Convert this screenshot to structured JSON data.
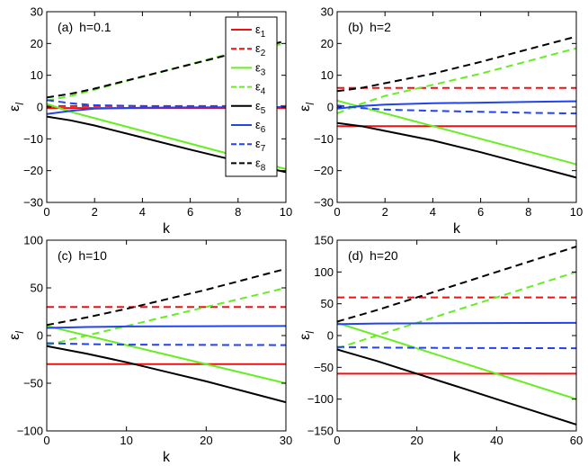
{
  "chart_data": [
    {
      "type": "line",
      "panel_label": "(a)",
      "title": "h=0.1",
      "xlabel": "k",
      "ylabel": "ε",
      "ylabel_sub": "l",
      "xlim": [
        0,
        10
      ],
      "ylim": [
        -30,
        30
      ],
      "xticks": [
        0,
        2,
        4,
        6,
        8,
        10
      ],
      "yticks": [
        -30,
        -20,
        -10,
        0,
        10,
        20,
        30
      ],
      "legend": {
        "position": "top-right",
        "entries": [
          {
            "symbol": "ε",
            "sub": "1"
          },
          {
            "symbol": "ε",
            "sub": "2"
          },
          {
            "symbol": "ε",
            "sub": "3"
          },
          {
            "symbol": "ε",
            "sub": "4"
          },
          {
            "symbol": "ε",
            "sub": "5"
          },
          {
            "symbol": "ε",
            "sub": "6"
          },
          {
            "symbol": "ε",
            "sub": "7"
          },
          {
            "symbol": "ε",
            "sub": "8"
          }
        ]
      },
      "series": [
        {
          "name": "ε1",
          "color": "#ee1111",
          "dash": "solid",
          "x": [
            0,
            10
          ],
          "y": [
            -0.3,
            -0.3
          ]
        },
        {
          "name": "ε2",
          "color": "#ee1111",
          "dash": "dashed",
          "x": [
            0,
            10
          ],
          "y": [
            0.3,
            0.3
          ]
        },
        {
          "name": "ε3",
          "color": "#66ee22",
          "dash": "solid",
          "x": [
            0,
            1,
            2,
            4,
            6,
            8,
            10
          ],
          "y": [
            1,
            -1.5,
            -3.5,
            -7.5,
            -11.5,
            -15.5,
            -19.5
          ]
        },
        {
          "name": "ε4",
          "color": "#66ee22",
          "dash": "dashed",
          "x": [
            0,
            1,
            2,
            4,
            6,
            8,
            10
          ],
          "y": [
            2,
            3.5,
            5.5,
            9.5,
            13.5,
            17.5,
            20
          ]
        },
        {
          "name": "ε5",
          "color": "#000000",
          "dash": "solid",
          "x": [
            0,
            1,
            2,
            4,
            6,
            8,
            10
          ],
          "y": [
            -3,
            -4.2,
            -5.8,
            -9.6,
            -13.4,
            -17,
            -20.5
          ]
        },
        {
          "name": "ε6",
          "color": "#2244ee",
          "dash": "solid",
          "x": [
            0,
            1,
            2,
            4,
            6,
            8,
            10
          ],
          "y": [
            -2.2,
            -1.2,
            -0.5,
            -0.2,
            -0.1,
            -0.05,
            0
          ]
        },
        {
          "name": "ε7",
          "color": "#2244ee",
          "dash": "dashed",
          "x": [
            0,
            1,
            2,
            4,
            6,
            8,
            10
          ],
          "y": [
            2.2,
            1.2,
            0.6,
            0.3,
            0.2,
            0.1,
            0
          ]
        },
        {
          "name": "ε8",
          "color": "#000000",
          "dash": "dashed",
          "x": [
            0,
            1,
            2,
            4,
            6,
            8,
            10
          ],
          "y": [
            3,
            4.2,
            5.8,
            9.6,
            13.4,
            17.2,
            20.8
          ]
        }
      ]
    },
    {
      "type": "line",
      "panel_label": "(b)",
      "title": "h=2",
      "xlabel": "k",
      "ylabel": "ε",
      "ylabel_sub": "l",
      "xlim": [
        0,
        10
      ],
      "ylim": [
        -30,
        30
      ],
      "xticks": [
        0,
        2,
        4,
        6,
        8,
        10
      ],
      "yticks": [
        -30,
        -20,
        -10,
        0,
        10,
        20,
        30
      ],
      "series": [
        {
          "name": "ε1",
          "color": "#ee1111",
          "dash": "solid",
          "x": [
            0,
            10
          ],
          "y": [
            -6,
            -6
          ]
        },
        {
          "name": "ε2",
          "color": "#ee1111",
          "dash": "dashed",
          "x": [
            0,
            10
          ],
          "y": [
            6,
            6
          ]
        },
        {
          "name": "ε3",
          "color": "#66ee22",
          "dash": "solid",
          "x": [
            0,
            10
          ],
          "y": [
            2,
            -18
          ]
        },
        {
          "name": "ε4",
          "color": "#66ee22",
          "dash": "dashed",
          "x": [
            0,
            1,
            2,
            4,
            6,
            8,
            10
          ],
          "y": [
            -2,
            1,
            3.5,
            7,
            10.5,
            14.5,
            18.5
          ]
        },
        {
          "name": "ε5",
          "color": "#000000",
          "dash": "solid",
          "x": [
            0,
            1,
            2,
            4,
            6,
            8,
            10
          ],
          "y": [
            -5,
            -6,
            -7.5,
            -10.5,
            -14.2,
            -18.2,
            -22.2
          ]
        },
        {
          "name": "ε6",
          "color": "#2244ee",
          "dash": "solid",
          "x": [
            0,
            1,
            2,
            4,
            6,
            8,
            10
          ],
          "y": [
            -0.5,
            0.3,
            0.8,
            1.2,
            1.4,
            1.6,
            1.8
          ]
        },
        {
          "name": "ε7",
          "color": "#2244ee",
          "dash": "dashed",
          "x": [
            0,
            1,
            2,
            4,
            6,
            8,
            10
          ],
          "y": [
            0.5,
            -0.3,
            -0.8,
            -1.2,
            -1.5,
            -1.8,
            -2
          ]
        },
        {
          "name": "ε8",
          "color": "#000000",
          "dash": "dashed",
          "x": [
            0,
            1,
            2,
            4,
            6,
            8,
            10
          ],
          "y": [
            5,
            6,
            7.5,
            10.5,
            14.2,
            18.2,
            22.2
          ]
        }
      ]
    },
    {
      "type": "line",
      "panel_label": "(c)",
      "title": "h=10",
      "xlabel": "k",
      "ylabel": "ε",
      "ylabel_sub": "l",
      "xlim": [
        0,
        30
      ],
      "ylim": [
        -100,
        100
      ],
      "xticks": [
        0,
        10,
        20,
        30
      ],
      "yticks": [
        -100,
        -50,
        0,
        50,
        100
      ],
      "series": [
        {
          "name": "ε1",
          "color": "#ee1111",
          "dash": "solid",
          "x": [
            0,
            30
          ],
          "y": [
            -30,
            -30
          ]
        },
        {
          "name": "ε2",
          "color": "#ee1111",
          "dash": "dashed",
          "x": [
            0,
            30
          ],
          "y": [
            30,
            30
          ]
        },
        {
          "name": "ε3",
          "color": "#66ee22",
          "dash": "solid",
          "x": [
            0,
            30
          ],
          "y": [
            10,
            -50
          ]
        },
        {
          "name": "ε4",
          "color": "#66ee22",
          "dash": "dashed",
          "x": [
            0,
            30
          ],
          "y": [
            -10,
            50
          ]
        },
        {
          "name": "ε5",
          "color": "#000000",
          "dash": "solid",
          "x": [
            0,
            5,
            10,
            15,
            20,
            25,
            30
          ],
          "y": [
            -11,
            -19,
            -28,
            -38,
            -48,
            -59,
            -70
          ]
        },
        {
          "name": "ε6",
          "color": "#2244ee",
          "dash": "solid",
          "x": [
            0,
            5,
            10,
            20,
            30
          ],
          "y": [
            8,
            9,
            9.5,
            9.8,
            10
          ]
        },
        {
          "name": "ε7",
          "color": "#2244ee",
          "dash": "dashed",
          "x": [
            0,
            5,
            10,
            20,
            30
          ],
          "y": [
            -8,
            -9,
            -9.5,
            -9.8,
            -10
          ]
        },
        {
          "name": "ε8",
          "color": "#000000",
          "dash": "dashed",
          "x": [
            0,
            5,
            10,
            15,
            20,
            25,
            30
          ],
          "y": [
            11,
            19,
            28,
            38,
            48,
            59,
            70
          ]
        }
      ]
    },
    {
      "type": "line",
      "panel_label": "(d)",
      "title": "h=20",
      "xlabel": "k",
      "ylabel": "ε",
      "ylabel_sub": "l",
      "xlim": [
        0,
        60
      ],
      "ylim": [
        -150,
        150
      ],
      "xticks": [
        0,
        20,
        40,
        60
      ],
      "yticks": [
        -150,
        -100,
        -50,
        0,
        50,
        100,
        150
      ],
      "series": [
        {
          "name": "ε1",
          "color": "#ee1111",
          "dash": "solid",
          "x": [
            0,
            60
          ],
          "y": [
            -60,
            -60
          ]
        },
        {
          "name": "ε2",
          "color": "#ee1111",
          "dash": "dashed",
          "x": [
            0,
            60
          ],
          "y": [
            60,
            60
          ]
        },
        {
          "name": "ε3",
          "color": "#66ee22",
          "dash": "solid",
          "x": [
            0,
            60
          ],
          "y": [
            20,
            -100
          ]
        },
        {
          "name": "ε4",
          "color": "#66ee22",
          "dash": "dashed",
          "x": [
            0,
            60
          ],
          "y": [
            -20,
            100
          ]
        },
        {
          "name": "ε5",
          "color": "#000000",
          "dash": "solid",
          "x": [
            0,
            10,
            20,
            30,
            40,
            50,
            60
          ],
          "y": [
            -22,
            -40,
            -60,
            -80,
            -100,
            -120,
            -140
          ]
        },
        {
          "name": "ε6",
          "color": "#2244ee",
          "dash": "solid",
          "x": [
            0,
            10,
            30,
            60
          ],
          "y": [
            18,
            19,
            19.5,
            20
          ]
        },
        {
          "name": "ε7",
          "color": "#2244ee",
          "dash": "dashed",
          "x": [
            0,
            10,
            30,
            60
          ],
          "y": [
            -18,
            -19,
            -19.5,
            -20
          ]
        },
        {
          "name": "ε8",
          "color": "#000000",
          "dash": "dashed",
          "x": [
            0,
            10,
            20,
            30,
            40,
            50,
            60
          ],
          "y": [
            22,
            40,
            60,
            80,
            100,
            120,
            140
          ]
        }
      ]
    }
  ]
}
